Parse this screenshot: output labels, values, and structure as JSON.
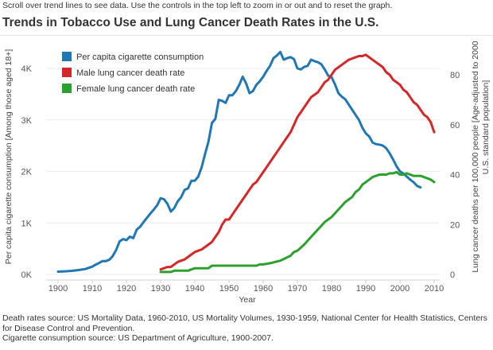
{
  "header": {
    "instructions": "Scroll over trend lines to see data. Use the controls in the top left to zoom in or out and to reset the graph.",
    "title": "Trends in Tobacco Use and Lung Cancer Death Rates in the U.S."
  },
  "footnotes": {
    "line1": "Death rates source: US Mortality Data, 1960-2010, US Mortality Volumes, 1930-1959, National Center for Health Statistics, Centers for Disease Control and Prevention.",
    "line2": "Cigarette consumption source: US Department of Agriculture, 1900-2007."
  },
  "chart_data": {
    "type": "line",
    "xlabel": "Year",
    "ylabel_left": "Per capita cigarette consumption [Among those aged 18+]",
    "ylabel_right_line1": "Lung cancer deaths per 100,000 people  [Age-adjusted to 2000",
    "ylabel_right_line2": "U.S. standard population]",
    "xlim": [
      1900,
      2010
    ],
    "ylim_left": [
      0,
      4000
    ],
    "ylim_right": [
      0,
      80
    ],
    "x_ticks": [
      "1900",
      "1910",
      "1920",
      "1930",
      "1940",
      "1950",
      "1960",
      "1970",
      "1980",
      "1990",
      "2000",
      "2010"
    ],
    "y_left_ticks": [
      "0K",
      "1K",
      "2K",
      "3K",
      "4K"
    ],
    "y_right_ticks": [
      "0",
      "20",
      "40",
      "60",
      "80"
    ],
    "legend_position": "top-left",
    "series": [
      {
        "name": "Per capita cigarette consumption",
        "axis": "left",
        "color": "#1f77b4",
        "points": [
          [
            1900,
            54
          ],
          [
            1902,
            60
          ],
          [
            1904,
            70
          ],
          [
            1906,
            85
          ],
          [
            1908,
            105
          ],
          [
            1910,
            151
          ],
          [
            1911,
            190
          ],
          [
            1912,
            223
          ],
          [
            1913,
            260
          ],
          [
            1914,
            260
          ],
          [
            1915,
            285
          ],
          [
            1916,
            357
          ],
          [
            1917,
            476
          ],
          [
            1918,
            641
          ],
          [
            1919,
            685
          ],
          [
            1920,
            665
          ],
          [
            1921,
            734
          ],
          [
            1922,
            704
          ],
          [
            1923,
            869
          ],
          [
            1924,
            926
          ],
          [
            1925,
            1015
          ],
          [
            1926,
            1099
          ],
          [
            1927,
            1183
          ],
          [
            1928,
            1258
          ],
          [
            1929,
            1345
          ],
          [
            1930,
            1480
          ],
          [
            1931,
            1460
          ],
          [
            1932,
            1370
          ],
          [
            1933,
            1220
          ],
          [
            1934,
            1290
          ],
          [
            1935,
            1420
          ],
          [
            1936,
            1500
          ],
          [
            1937,
            1640
          ],
          [
            1938,
            1670
          ],
          [
            1939,
            1820
          ],
          [
            1940,
            1820
          ],
          [
            1941,
            1900
          ],
          [
            1942,
            2080
          ],
          [
            1943,
            2340
          ],
          [
            1944,
            2580
          ],
          [
            1945,
            2940
          ],
          [
            1946,
            3020
          ],
          [
            1947,
            3390
          ],
          [
            1948,
            3370
          ],
          [
            1949,
            3330
          ],
          [
            1950,
            3480
          ],
          [
            1951,
            3480
          ],
          [
            1952,
            3560
          ],
          [
            1953,
            3680
          ],
          [
            1954,
            3840
          ],
          [
            1955,
            3710
          ],
          [
            1956,
            3520
          ],
          [
            1957,
            3560
          ],
          [
            1958,
            3680
          ],
          [
            1959,
            3750
          ],
          [
            1960,
            3840
          ],
          [
            1961,
            3950
          ],
          [
            1962,
            4050
          ],
          [
            1963,
            4200
          ],
          [
            1964,
            4250
          ],
          [
            1965,
            4320
          ],
          [
            1966,
            4170
          ],
          [
            1967,
            4200
          ],
          [
            1968,
            4220
          ],
          [
            1969,
            4180
          ],
          [
            1970,
            4000
          ],
          [
            1971,
            3980
          ],
          [
            1972,
            4030
          ],
          [
            1973,
            4050
          ],
          [
            1974,
            4170
          ],
          [
            1975,
            4140
          ],
          [
            1976,
            4120
          ],
          [
            1977,
            4080
          ],
          [
            1978,
            3980
          ],
          [
            1979,
            3860
          ],
          [
            1980,
            3830
          ],
          [
            1981,
            3690
          ],
          [
            1982,
            3520
          ],
          [
            1983,
            3450
          ],
          [
            1984,
            3400
          ],
          [
            1985,
            3300
          ],
          [
            1986,
            3200
          ],
          [
            1987,
            3100
          ],
          [
            1988,
            3000
          ],
          [
            1989,
            2850
          ],
          [
            1990,
            2740
          ],
          [
            1991,
            2680
          ],
          [
            1992,
            2560
          ],
          [
            1993,
            2530
          ],
          [
            1994,
            2520
          ],
          [
            1995,
            2500
          ],
          [
            1996,
            2450
          ],
          [
            1997,
            2350
          ],
          [
            1998,
            2230
          ],
          [
            1999,
            2100
          ],
          [
            2000,
            2000
          ],
          [
            2001,
            1960
          ],
          [
            2002,
            1900
          ],
          [
            2003,
            1840
          ],
          [
            2004,
            1790
          ],
          [
            2005,
            1720
          ],
          [
            2006,
            1690
          ]
        ]
      },
      {
        "name": "Male lung cancer death rate",
        "axis": "right",
        "color": "#d62728",
        "points": [
          [
            1930,
            2
          ],
          [
            1931,
            2.5
          ],
          [
            1932,
            3
          ],
          [
            1933,
            3
          ],
          [
            1934,
            4
          ],
          [
            1935,
            5
          ],
          [
            1936,
            5.5
          ],
          [
            1937,
            6
          ],
          [
            1938,
            7
          ],
          [
            1939,
            8
          ],
          [
            1940,
            9
          ],
          [
            1941,
            9.5
          ],
          [
            1942,
            10
          ],
          [
            1943,
            11
          ],
          [
            1944,
            12
          ],
          [
            1945,
            13
          ],
          [
            1946,
            15
          ],
          [
            1947,
            17
          ],
          [
            1948,
            20
          ],
          [
            1949,
            22
          ],
          [
            1950,
            22
          ],
          [
            1951,
            24
          ],
          [
            1952,
            26
          ],
          [
            1953,
            28
          ],
          [
            1954,
            30
          ],
          [
            1955,
            32
          ],
          [
            1956,
            34
          ],
          [
            1957,
            36
          ],
          [
            1958,
            37
          ],
          [
            1959,
            39
          ],
          [
            1960,
            41
          ],
          [
            1961,
            43
          ],
          [
            1962,
            45
          ],
          [
            1963,
            47
          ],
          [
            1964,
            49
          ],
          [
            1965,
            51
          ],
          [
            1966,
            53
          ],
          [
            1967,
            55
          ],
          [
            1968,
            57
          ],
          [
            1969,
            60
          ],
          [
            1970,
            63
          ],
          [
            1971,
            65
          ],
          [
            1972,
            67
          ],
          [
            1973,
            69
          ],
          [
            1974,
            71
          ],
          [
            1975,
            72
          ],
          [
            1976,
            73
          ],
          [
            1977,
            75
          ],
          [
            1978,
            77
          ],
          [
            1979,
            78
          ],
          [
            1980,
            80
          ],
          [
            1981,
            82
          ],
          [
            1982,
            83
          ],
          [
            1983,
            84
          ],
          [
            1984,
            85
          ],
          [
            1985,
            86
          ],
          [
            1986,
            86.5
          ],
          [
            1987,
            87
          ],
          [
            1988,
            87.5
          ],
          [
            1989,
            87.5
          ],
          [
            1990,
            88
          ],
          [
            1991,
            87
          ],
          [
            1992,
            86
          ],
          [
            1993,
            85
          ],
          [
            1994,
            84
          ],
          [
            1995,
            83
          ],
          [
            1996,
            81
          ],
          [
            1997,
            80
          ],
          [
            1998,
            78
          ],
          [
            1999,
            77
          ],
          [
            2000,
            76
          ],
          [
            2001,
            74
          ],
          [
            2002,
            73
          ],
          [
            2003,
            71
          ],
          [
            2004,
            69
          ],
          [
            2005,
            68
          ],
          [
            2006,
            66
          ],
          [
            2007,
            64
          ],
          [
            2008,
            63
          ],
          [
            2009,
            61
          ],
          [
            2010,
            57
          ]
        ]
      },
      {
        "name": "Female lung cancer death rate",
        "axis": "right",
        "color": "#2ca02c",
        "points": [
          [
            1930,
            1
          ],
          [
            1933,
            1
          ],
          [
            1934,
            1.5
          ],
          [
            1938,
            1.5
          ],
          [
            1939,
            2
          ],
          [
            1940,
            2.5
          ],
          [
            1944,
            2.5
          ],
          [
            1945,
            3.5
          ],
          [
            1958,
            3.5
          ],
          [
            1959,
            4
          ],
          [
            1960,
            4
          ],
          [
            1962,
            4.5
          ],
          [
            1965,
            5.5
          ],
          [
            1968,
            7.5
          ],
          [
            1969,
            9
          ],
          [
            1970,
            9.5
          ],
          [
            1972,
            12
          ],
          [
            1974,
            15
          ],
          [
            1976,
            18
          ],
          [
            1978,
            21
          ],
          [
            1980,
            23
          ],
          [
            1981,
            24.5
          ],
          [
            1982,
            26
          ],
          [
            1983,
            27.5
          ],
          [
            1984,
            29
          ],
          [
            1985,
            30
          ],
          [
            1986,
            31
          ],
          [
            1987,
            33
          ],
          [
            1988,
            34
          ],
          [
            1989,
            36
          ],
          [
            1990,
            37
          ],
          [
            1991,
            38
          ],
          [
            1992,
            39
          ],
          [
            1993,
            39.5
          ],
          [
            1994,
            40
          ],
          [
            1995,
            40
          ],
          [
            1996,
            40
          ],
          [
            1997,
            40.5
          ],
          [
            1998,
            40.5
          ],
          [
            1999,
            41
          ],
          [
            2000,
            40
          ],
          [
            2001,
            40
          ],
          [
            2002,
            40.5
          ],
          [
            2003,
            40
          ],
          [
            2004,
            39.5
          ],
          [
            2005,
            39.5
          ],
          [
            2006,
            39.5
          ],
          [
            2007,
            39
          ],
          [
            2008,
            38.5
          ],
          [
            2009,
            38
          ],
          [
            2010,
            37
          ]
        ]
      }
    ]
  }
}
